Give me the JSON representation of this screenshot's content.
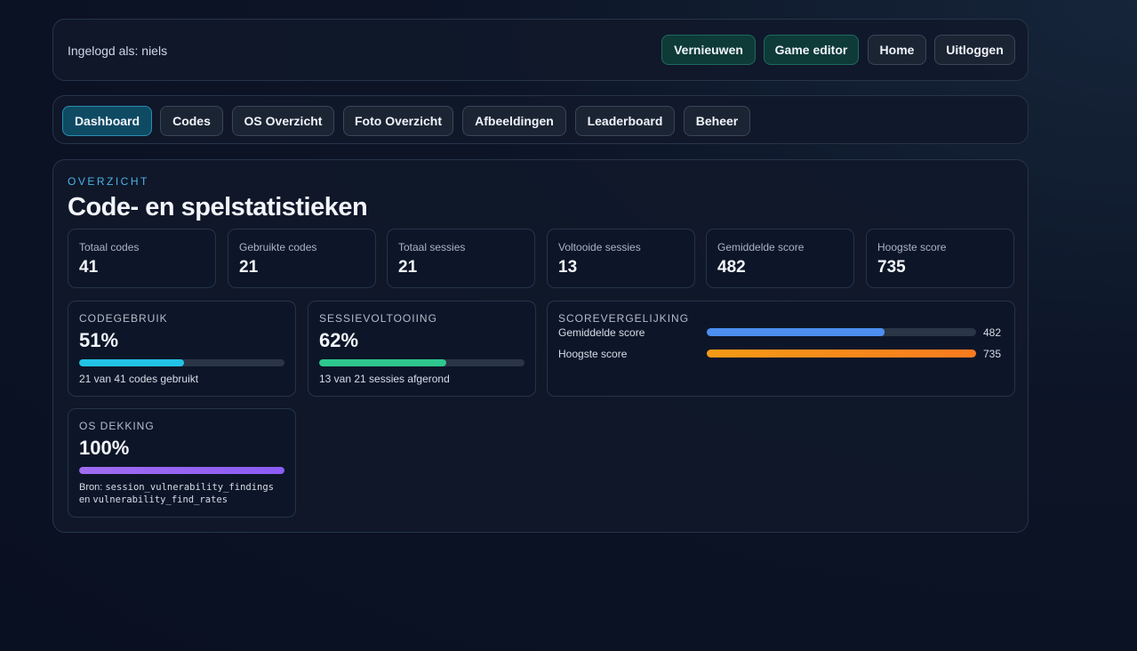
{
  "colors": {
    "background": "#0c1426",
    "panel": "#10192a",
    "accent": "#4db3e6",
    "code_bar": "#22c3e6",
    "session_bar": "#2ec78e",
    "avg_score_bar": "#4c8ff0",
    "max_score_bar": "#f59a16",
    "os_bar": "#a06cf0"
  },
  "topbar": {
    "user_label": "Ingelogd als: niels",
    "buttons": [
      {
        "label": "Vernieuwen"
      },
      {
        "label": "Game editor"
      },
      {
        "label": "Home"
      },
      {
        "label": "Uitloggen"
      }
    ]
  },
  "tabs": [
    {
      "label": "Dashboard",
      "active": true
    },
    {
      "label": "Codes"
    },
    {
      "label": "OS Overzicht"
    },
    {
      "label": "Foto Overzicht"
    },
    {
      "label": "Afbeeldingen"
    },
    {
      "label": "Leaderboard"
    },
    {
      "label": "Beheer"
    }
  ],
  "main": {
    "eyebrow": "OVERZICHT",
    "title": "Code- en spelstatistieken",
    "stats": [
      {
        "label": "Totaal codes",
        "value": "41"
      },
      {
        "label": "Gebruikte codes",
        "value": "21"
      },
      {
        "label": "Totaal sessies",
        "value": "21"
      },
      {
        "label": "Voltooide sessies",
        "value": "13"
      },
      {
        "label": "Gemiddelde score",
        "value": "482"
      },
      {
        "label": "Hoogste score",
        "value": "735"
      }
    ],
    "code_usage": {
      "label": "CODEGEBRUIK",
      "percent_text": "51%",
      "fraction": 0.51,
      "subtext": "21 van 41 codes gebruikt"
    },
    "session_completion": {
      "label": "SESSIEVOLTOOIING",
      "percent_text": "62%",
      "fraction": 0.62,
      "subtext": "13 van 21 sessies afgerond"
    },
    "score_comparison": {
      "label": "SCOREVERGELIJKING",
      "rows": [
        {
          "label": "Gemiddelde score",
          "value": "482",
          "fraction": 0.66
        },
        {
          "label": "Hoogste score",
          "value": "735",
          "fraction": 1.0
        }
      ]
    },
    "os_coverage": {
      "label": "OS DEKKING",
      "percent_text": "100%",
      "fraction": 1.0,
      "source_prefix": "Bron:",
      "source_table_1": "session_vulnerability_findings",
      "source_connector": "en",
      "source_table_2": "vulnerability_find_rates"
    }
  }
}
